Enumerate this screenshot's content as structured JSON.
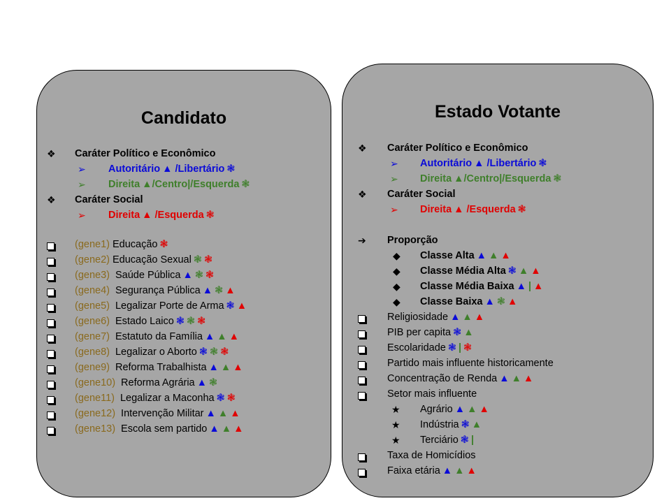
{
  "left": {
    "title": "Candidato",
    "cat1": "Caráter Político e Econômico",
    "cat1_sub1_a": "Autoritário",
    "cat1_sub1_b": " /Libertário",
    "cat1_sub2": "Direita",
    "cat1_sub2_b": "/Centro|/Esquerda",
    "cat2": "Caráter Social",
    "cat2_sub1_a": "Direita",
    "cat2_sub1_b": " /Esquerda",
    "genes": [
      {
        "gene": "(gene1)",
        "label": "Educação"
      },
      {
        "gene": "(gene2)",
        "label": "Educação Sexual"
      },
      {
        "gene": "(gene3)",
        "label": "Saúde Pública"
      },
      {
        "gene": "(gene4)",
        "label": "Segurança Pública"
      },
      {
        "gene": "(gene5)",
        "label": "Legalizar Porte de Arma"
      },
      {
        "gene": "(gene6)",
        "label": "Estado Laico"
      },
      {
        "gene": "(gene7)",
        "label": "Estatuto da Família"
      },
      {
        "gene": "(gene8)",
        "label": "Legalizar o Aborto"
      },
      {
        "gene": "(gene9)",
        "label": "Reforma Trabalhista"
      },
      {
        "gene": "(gene10)",
        "label": "Reforma Agrária"
      },
      {
        "gene": "(gene11)",
        "label": "Legalizar a Maconha"
      },
      {
        "gene": "(gene12)",
        "label": "Intervenção Militar"
      },
      {
        "gene": "(gene13)",
        "label": "Escola sem partido"
      }
    ]
  },
  "right": {
    "title": "Estado Votante",
    "cat1": "Caráter Político e Econômico",
    "cat1_sub1_a": "Autoritário",
    "cat1_sub1_b": " /Libertário",
    "cat1_sub2": "Direita",
    "cat1_sub2_b": "/Centro|/Esquerda",
    "cat2": "Caráter Social",
    "cat2_sub1_a": "Direita",
    "cat2_sub1_b": " /Esquerda",
    "proporcao": "Proporção",
    "classes": [
      "Classe Alta",
      "Classe Média Alta",
      "Classe Média Baixa",
      "Classe Baixa"
    ],
    "items": [
      "Religiosidade",
      "PIB per capita",
      "Escolaridade",
      "Partido mais influente historicamente",
      "Concentração de Renda",
      "Setor mais influente"
    ],
    "setores": [
      "Agrário",
      "Indústria",
      "Terciário"
    ],
    "items2": [
      "Taxa de Homicídios",
      "Faixa etária"
    ]
  },
  "colors": {
    "blue": "#0a0ad8",
    "green": "#3f7f2b",
    "red": "#e00000",
    "gene": "#8a6a1e",
    "panel": "#a6a6a6"
  }
}
